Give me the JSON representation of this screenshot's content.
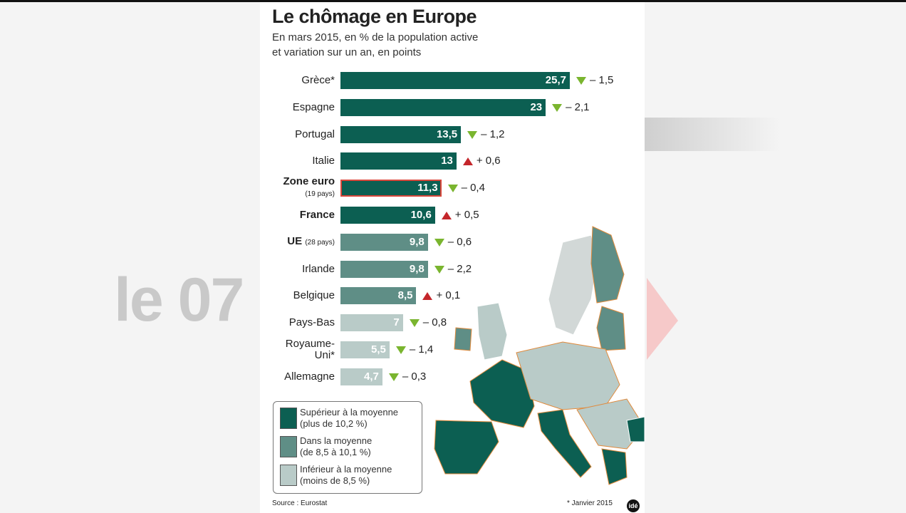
{
  "overlay": {
    "text": "le 07"
  },
  "chart_data": {
    "type": "bar",
    "orientation": "horizontal",
    "title": "Le chômage en Europe",
    "subtitle": [
      "En mars 2015, en % de la population active",
      "et variation sur un an, en points"
    ],
    "categories": [
      "Grèce*",
      "Espagne",
      "Portugal",
      "Italie",
      "Zone euro",
      "France",
      "UE",
      "Irlande",
      "Belgique",
      "Pays-Bas",
      "Royaume-Uni*",
      "Allemagne"
    ],
    "category_notes": [
      null,
      null,
      null,
      null,
      "(19 pays)",
      null,
      "(28 pays)",
      null,
      null,
      null,
      null,
      null
    ],
    "bold": [
      false,
      false,
      false,
      false,
      true,
      true,
      true,
      false,
      false,
      false,
      false,
      false
    ],
    "values": [
      25.7,
      23,
      13.5,
      13,
      11.3,
      10.6,
      9.8,
      9.8,
      8.5,
      7,
      5.5,
      4.7
    ],
    "value_labels": [
      "25,7",
      "23",
      "13,5",
      "13",
      "11,3",
      "10,6",
      "9,8",
      "9,8",
      "8,5",
      "7",
      "5,5",
      "4,7"
    ],
    "colors": [
      "#0c5f52",
      "#0c5f52",
      "#0c5f52",
      "#0c5f52",
      "#0c5f52",
      "#0c5f52",
      "#5f8e86",
      "#5f8e86",
      "#5f8e86",
      "#b9cbc8",
      "#b9cbc8",
      "#b9cbc8"
    ],
    "changes": [
      -1.5,
      -2.1,
      -1.2,
      0.6,
      -0.4,
      0.5,
      -0.6,
      -2.2,
      0.1,
      -0.8,
      -1.4,
      -0.3
    ],
    "change_labels": [
      "– 1,5",
      "– 2,1",
      "– 1,2",
      "+ 0,6",
      "– 0,4",
      "+ 0,5",
      "– 0,6",
      "– 2,2",
      "+ 0,1",
      "– 0,8",
      "– 1,4",
      "– 0,3"
    ],
    "legend": [
      {
        "color": "#0c5f52",
        "label": [
          "Supérieur à la moyenne",
          "(plus de 10,2 %)"
        ]
      },
      {
        "color": "#5f8e86",
        "label": [
          "Dans la moyenne",
          "(de 8,5 à 10,1 %)"
        ]
      },
      {
        "color": "#b9cbc8",
        "label": [
          "Inférieur à la moyenne",
          "(moins de 8,5 %)"
        ]
      }
    ],
    "source": "Source : Eurostat",
    "footnote": "* Janvier 2015",
    "logo": "idé"
  }
}
